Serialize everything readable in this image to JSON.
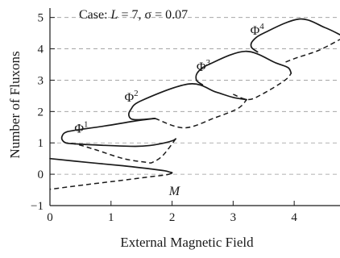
{
  "chart_data": {
    "type": "line",
    "title": "Case: L = 7, σ = 0.07",
    "title_parts": {
      "prefix": "Case: ",
      "L_symbol": "L",
      "L_value": " = 7, ",
      "sigma_symbol": "σ",
      "sigma_value": " = 0.07"
    },
    "xlabel": "External Magnetic Field",
    "ylabel": "Number of Fluxons",
    "xlim": [
      0,
      4.75
    ],
    "ylim": [
      -1,
      5.3
    ],
    "x_ticks": [
      0,
      1,
      2,
      3,
      4
    ],
    "x_tick_labels": [
      "0",
      "1",
      "2",
      "3",
      "4"
    ],
    "y_ticks": [
      -1,
      0,
      1,
      2,
      3,
      4,
      5
    ],
    "y_tick_labels": [
      "−1",
      "0",
      "1",
      "2",
      "3",
      "4",
      "5"
    ],
    "grid": {
      "horizontal_dashed_at": [
        0,
        1,
        2,
        3,
        4,
        5
      ]
    },
    "legend": "none",
    "line_color": "#1a1a1a",
    "series": [
      {
        "label": "M",
        "label_pos": [
          1.95,
          -0.67
        ],
        "solid": [
          [
            0,
            0.5
          ],
          [
            0.6,
            0.38
          ],
          [
            1.2,
            0.27
          ],
          [
            1.65,
            0.17
          ],
          [
            1.88,
            0.11
          ],
          [
            1.96,
            0.07
          ],
          [
            2.0,
            0.05
          ],
          [
            1.98,
            0.02
          ]
        ],
        "dashed": [
          [
            1.98,
            0.02
          ],
          [
            1.9,
            -0.02
          ],
          [
            1.6,
            -0.09
          ],
          [
            1.2,
            -0.19
          ],
          [
            0.6,
            -0.33
          ],
          [
            0,
            -0.48
          ]
        ]
      },
      {
        "label": "Φ",
        "superscript": "1",
        "label_pos": [
          0.4,
          1.33
        ],
        "solid": [
          [
            1.72,
            1.78
          ],
          [
            1.4,
            1.7
          ],
          [
            0.9,
            1.54
          ],
          [
            0.4,
            1.4
          ],
          [
            0.25,
            1.33
          ],
          [
            0.2,
            1.22
          ],
          [
            0.2,
            1.1
          ],
          [
            0.26,
            1.0
          ],
          [
            0.4,
            0.97
          ],
          [
            0.9,
            0.92
          ],
          [
            1.4,
            0.89
          ],
          [
            1.65,
            0.92
          ],
          [
            1.88,
            1.0
          ],
          [
            2.02,
            1.08
          ],
          [
            2.06,
            1.13
          ]
        ],
        "dashed": [
          [
            2.06,
            1.13
          ],
          [
            1.85,
            0.6
          ],
          [
            1.68,
            0.38
          ],
          [
            1.58,
            0.38
          ],
          [
            1.2,
            0.5
          ],
          [
            0.75,
            0.78
          ],
          [
            0.45,
            0.95
          ],
          [
            0.26,
            1.0
          ]
        ]
      },
      {
        "label": "Φ",
        "superscript": "2",
        "label_pos": [
          1.22,
          2.32
        ],
        "solid": [
          [
            1.72,
            1.78
          ],
          [
            1.4,
            1.74
          ],
          [
            1.3,
            1.83
          ],
          [
            1.32,
            2.05
          ],
          [
            1.5,
            2.35
          ],
          [
            2.28,
            2.88
          ],
          [
            2.72,
            2.62
          ],
          [
            3.0,
            2.45
          ],
          [
            3.22,
            2.38
          ]
        ],
        "dashed": [
          [
            1.72,
            1.78
          ],
          [
            2.2,
            1.48
          ],
          [
            2.7,
            1.8
          ],
          [
            3.08,
            2.1
          ],
          [
            3.22,
            2.38
          ]
        ]
      },
      {
        "label": "Φ",
        "superscript": "3",
        "label_pos": [
          2.4,
          3.3
        ],
        "solid": [
          [
            2.5,
            2.85
          ],
          [
            2.4,
            3.0
          ],
          [
            2.42,
            3.25
          ],
          [
            2.6,
            3.5
          ],
          [
            3.2,
            3.92
          ],
          [
            3.7,
            3.55
          ],
          [
            3.9,
            3.4
          ],
          [
            3.95,
            3.22
          ]
        ],
        "dashed": [
          [
            3.0,
            2.55
          ],
          [
            3.25,
            2.38
          ],
          [
            3.5,
            2.58
          ],
          [
            3.85,
            3.0
          ],
          [
            3.95,
            3.22
          ]
        ]
      },
      {
        "label": "Φ",
        "superscript": "4",
        "label_pos": [
          3.28,
          4.45
        ],
        "solid": [
          [
            3.4,
            3.9
          ],
          [
            3.3,
            4.05
          ],
          [
            3.32,
            4.25
          ],
          [
            3.5,
            4.5
          ],
          [
            4.08,
            4.95
          ],
          [
            4.5,
            4.68
          ],
          [
            4.75,
            4.45
          ]
        ],
        "dashed": [
          [
            3.86,
            3.58
          ],
          [
            4.05,
            3.72
          ],
          [
            4.4,
            3.95
          ],
          [
            4.75,
            4.3
          ]
        ]
      }
    ]
  }
}
